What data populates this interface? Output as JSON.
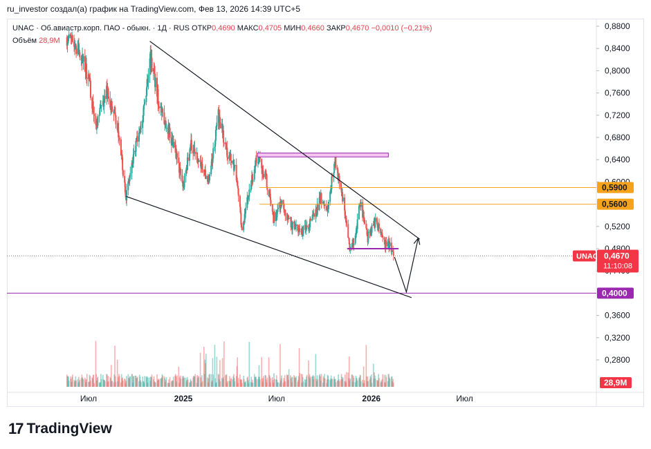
{
  "header": {
    "text": "ru_investor создал(а) график на TradingView.com, Фев 13, 2026 14:39 UTC+5"
  },
  "legend": {
    "symbol": "UNAC · Об.авиастр.корп. ПАО - обыкн. · 1Д · RUS",
    "open_label": "ОТКР",
    "open": "0,4690",
    "high_label": "МАКС",
    "high": "0,4705",
    "low_label": "МИН",
    "low": "0,4660",
    "close_label": "ЗАКР",
    "close": "0,4670",
    "change": "−0,0010 (−0,21%)",
    "volume_label": "Объём",
    "volume": "28,9M"
  },
  "branding": {
    "name": "TradingView"
  },
  "colors": {
    "up": "#26a69a",
    "down": "#ef5350",
    "orange": "#f7a21b",
    "purple": "#9c27b0",
    "pink": "#f5c6f0",
    "red_badge": "#f23645"
  },
  "chart_data": {
    "type": "candlestick",
    "symbol": "UNAC",
    "interval": "1D",
    "y_axis": {
      "ticks": [
        "0,8800",
        "0,8400",
        "0,8000",
        "0,7600",
        "0,7200",
        "0,6800",
        "0,6400",
        "0,6000",
        "0,5200",
        "0,4800",
        "0,4400",
        "0,3600",
        "0,3200",
        "0,2800"
      ],
      "range": [
        0.26,
        0.89
      ]
    },
    "x_axis": {
      "ticks": [
        {
          "label": "Июл",
          "date": "2024-07-01"
        },
        {
          "label": "2025",
          "date": "2025-01-01"
        },
        {
          "label": "Июл",
          "date": "2025-07-01"
        },
        {
          "label": "2026",
          "date": "2026-01-01"
        },
        {
          "label": "Июл",
          "date": "2026-07-01"
        }
      ],
      "range": [
        "2024-04-10",
        "2026-10-01"
      ]
    },
    "price_path": [
      {
        "date": "2024-05-20",
        "price": 0.86
      },
      {
        "date": "2024-06-10",
        "price": 0.84
      },
      {
        "date": "2024-07-01",
        "price": 0.79
      },
      {
        "date": "2024-07-15",
        "price": 0.7
      },
      {
        "date": "2024-08-05",
        "price": 0.76
      },
      {
        "date": "2024-08-25",
        "price": 0.71
      },
      {
        "date": "2024-09-12",
        "price": 0.575
      },
      {
        "date": "2024-09-30",
        "price": 0.66
      },
      {
        "date": "2024-10-20",
        "price": 0.75
      },
      {
        "date": "2024-10-28",
        "price": 0.83
      },
      {
        "date": "2024-11-15",
        "price": 0.74
      },
      {
        "date": "2024-12-05",
        "price": 0.69
      },
      {
        "date": "2024-12-20",
        "price": 0.64
      },
      {
        "date": "2025-01-01",
        "price": 0.59
      },
      {
        "date": "2025-01-15",
        "price": 0.67
      },
      {
        "date": "2025-02-01",
        "price": 0.63
      },
      {
        "date": "2025-02-20",
        "price": 0.6
      },
      {
        "date": "2025-03-10",
        "price": 0.72
      },
      {
        "date": "2025-03-28",
        "price": 0.65
      },
      {
        "date": "2025-04-12",
        "price": 0.62
      },
      {
        "date": "2025-04-25",
        "price": 0.515
      },
      {
        "date": "2025-05-08",
        "price": 0.58
      },
      {
        "date": "2025-05-25",
        "price": 0.645
      },
      {
        "date": "2025-06-10",
        "price": 0.61
      },
      {
        "date": "2025-06-25",
        "price": 0.535
      },
      {
        "date": "2025-07-10",
        "price": 0.56
      },
      {
        "date": "2025-08-01",
        "price": 0.52
      },
      {
        "date": "2025-08-20",
        "price": 0.51
      },
      {
        "date": "2025-09-05",
        "price": 0.53
      },
      {
        "date": "2025-09-25",
        "price": 0.57
      },
      {
        "date": "2025-10-08",
        "price": 0.55
      },
      {
        "date": "2025-10-22",
        "price": 0.64
      },
      {
        "date": "2025-11-05",
        "price": 0.575
      },
      {
        "date": "2025-11-20",
        "price": 0.48
      },
      {
        "date": "2025-12-01",
        "price": 0.5
      },
      {
        "date": "2025-12-10",
        "price": 0.565
      },
      {
        "date": "2025-12-25",
        "price": 0.5
      },
      {
        "date": "2026-01-10",
        "price": 0.53
      },
      {
        "date": "2026-01-25",
        "price": 0.49
      },
      {
        "date": "2026-02-05",
        "price": 0.485
      },
      {
        "date": "2026-02-13",
        "price": 0.467
      }
    ],
    "drawings": {
      "upper_trendline": [
        {
          "date": "2024-10-28",
          "price": 0.853
        },
        {
          "date": "2026-04-05",
          "price": 0.497
        }
      ],
      "lower_trendline": [
        {
          "date": "2024-09-12",
          "price": 0.574
        },
        {
          "date": "2026-03-20",
          "price": 0.392
        }
      ],
      "resistance_box": {
        "from": "2025-05-25",
        "to": "2026-02-03",
        "top": 0.652,
        "bottom": 0.645
      },
      "orange_lines": [
        0.59,
        0.56
      ],
      "support_line": {
        "from": "2025-11-15",
        "to": "2026-02-23",
        "price": 0.48
      },
      "purple_line": 0.4,
      "projection": [
        {
          "date": "2026-02-15",
          "price": 0.465
        },
        {
          "date": "2026-03-10",
          "price": 0.402
        },
        {
          "date": "2026-04-02",
          "price": 0.499
        }
      ]
    },
    "price_labels": [
      {
        "text": "0,5900",
        "price": 0.59,
        "kind": "orange"
      },
      {
        "text": "0,5600",
        "price": 0.56,
        "kind": "orange"
      },
      {
        "text": "0,4000",
        "price": 0.4,
        "kind": "purple"
      }
    ],
    "last_price": {
      "symbol": "UNAC",
      "price": 0.467,
      "text": "0,4670",
      "countdown": "11:10:08"
    },
    "volume_last_label": "28,9M"
  }
}
